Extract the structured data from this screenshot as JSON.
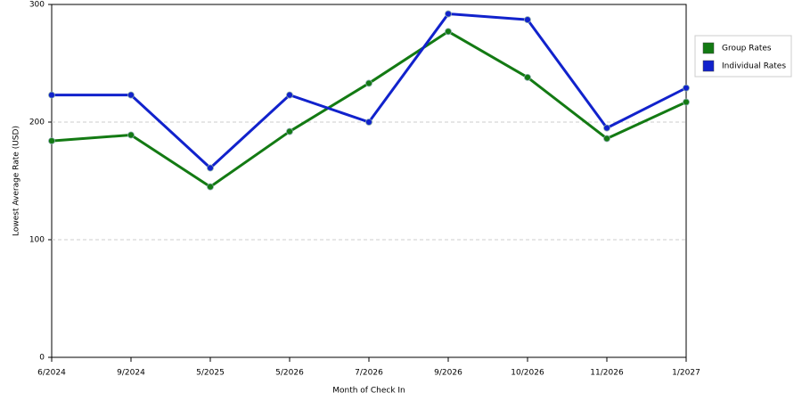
{
  "chart_data": {
    "type": "line",
    "x_label": "Month of Check In",
    "y_label": "Lowest Average Rate (USD)",
    "categories": [
      "6/2024",
      "9/2024",
      "5/2025",
      "5/2026",
      "7/2026",
      "9/2026",
      "10/2026",
      "11/2026",
      "1/2027"
    ],
    "series": [
      {
        "name": "Group Rates",
        "color": "#137a13",
        "values": [
          184,
          189,
          145,
          192,
          233,
          277,
          238,
          186,
          217
        ]
      },
      {
        "name": "Individual Rates",
        "color": "#1122cc",
        "values": [
          223,
          223,
          161,
          223,
          200,
          292,
          287,
          195,
          229
        ]
      }
    ],
    "ylim": [
      0,
      300
    ],
    "yticks": [
      0,
      100,
      200,
      300
    ],
    "grid": true
  }
}
